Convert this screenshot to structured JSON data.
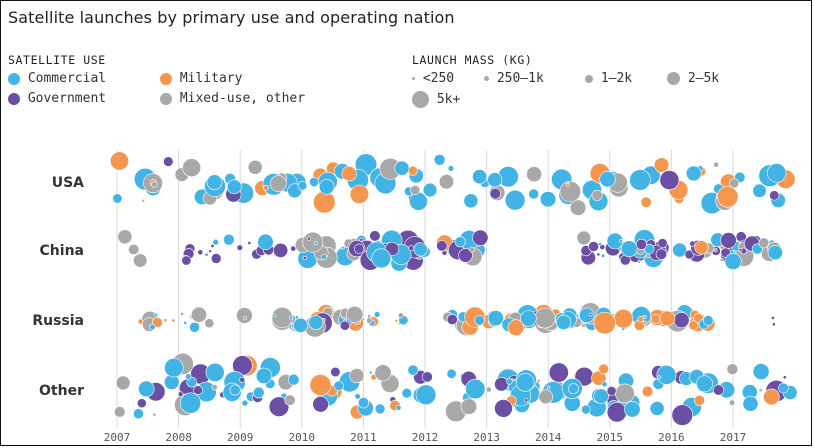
{
  "chart_data": {
    "type": "scatter",
    "title": "Satellite launches by primary use and operating nation",
    "legend_use": {
      "heading": "SATELLITE USE",
      "items": [
        {
          "label": "Commercial",
          "color": "#41b3e5"
        },
        {
          "label": "Military",
          "color": "#f4964e"
        },
        {
          "label": "Government",
          "color": "#6a4fa4"
        },
        {
          "label": "Mixed-use, other",
          "color": "#a8a8a8"
        }
      ]
    },
    "legend_mass": {
      "heading": "LAUNCH MASS (KG)",
      "items": [
        {
          "label": "<250"
        },
        {
          "label": "250–1k"
        },
        {
          "label": "1–2k"
        },
        {
          "label": "2–5k"
        },
        {
          "label": "5k+"
        }
      ]
    },
    "categories": [
      "USA",
      "China",
      "Russia",
      "Other"
    ],
    "x_ticks": [
      "2007",
      "2008",
      "2009",
      "2010",
      "2011",
      "2012",
      "2013",
      "2014",
      "2015",
      "2016",
      "2017"
    ],
    "xlim": [
      2007,
      2018
    ],
    "grid": true,
    "rows": {
      "USA": [
        {
          "ranges": [
            [
              2007.0,
              2017.95
            ]
          ],
          "density": 5.6,
          "mix": [
            0.45,
            0.25,
            0.07,
            0.23
          ],
          "mass": [
            0.06,
            0.1,
            0.2,
            0.34,
            0.3
          ]
        }
      ],
      "China": [
        {
          "ranges": [
            [
              2007.1,
              2007.5
            ]
          ],
          "density": 4,
          "mix": [
            0,
            0,
            0,
            1
          ],
          "mass": [
            0,
            0,
            0.2,
            0.8,
            0
          ]
        },
        {
          "ranges": [
            [
              2008.1,
              2010.0
            ]
          ],
          "density": 6,
          "mix": [
            0.12,
            0.04,
            0.7,
            0.14
          ],
          "mass": [
            0.3,
            0.25,
            0.3,
            0.15,
            0
          ]
        },
        {
          "ranges": [
            [
              2010.0,
              2012.95
            ]
          ],
          "density": 13,
          "mix": [
            0.25,
            0.05,
            0.45,
            0.25
          ],
          "mass": [
            0.1,
            0.15,
            0.3,
            0.3,
            0.15
          ]
        },
        {
          "ranges": [
            [
              2014.4,
              2014.95
            ]
          ],
          "density": 8,
          "mix": [
            0.3,
            0,
            0.6,
            0.1
          ],
          "mass": [
            0.3,
            0.3,
            0.3,
            0.1,
            0
          ]
        },
        {
          "ranges": [
            [
              2015.0,
              2017.7
            ]
          ],
          "density": 14,
          "mix": [
            0.35,
            0.07,
            0.35,
            0.23
          ],
          "mass": [
            0.15,
            0.15,
            0.3,
            0.3,
            0.1
          ]
        }
      ],
      "Russia": [
        {
          "ranges": [
            [
              2007.3,
              2008.5
            ]
          ],
          "density": 7,
          "mix": [
            0.3,
            0.35,
            0,
            0.35
          ],
          "mass": [
            0.25,
            0.25,
            0.3,
            0.2,
            0
          ]
        },
        {
          "ranges": [
            [
              2009.0,
              2011.75
            ]
          ],
          "density": 10,
          "mix": [
            0.3,
            0.3,
            0.1,
            0.3
          ],
          "mass": [
            0.2,
            0.2,
            0.3,
            0.2,
            0.1
          ]
        },
        {
          "ranges": [
            [
              2012.35,
              2016.6
            ]
          ],
          "density": 14,
          "mix": [
            0.32,
            0.35,
            0.05,
            0.28
          ],
          "mass": [
            0.1,
            0.15,
            0.3,
            0.3,
            0.15
          ]
        },
        {
          "ranges": [
            [
              2017.55,
              2017.7
            ]
          ],
          "density": 6,
          "mix": [
            0.5,
            0,
            0.5,
            0
          ],
          "mass": [
            1,
            0,
            0,
            0,
            0
          ]
        }
      ],
      "Other": [
        {
          "ranges": [
            [
              2007.0,
              2017.95
            ]
          ],
          "density": 7.5,
          "mix": [
            0.5,
            0.1,
            0.28,
            0.12
          ],
          "mass": [
            0.06,
            0.1,
            0.2,
            0.34,
            0.3
          ]
        }
      ]
    }
  }
}
